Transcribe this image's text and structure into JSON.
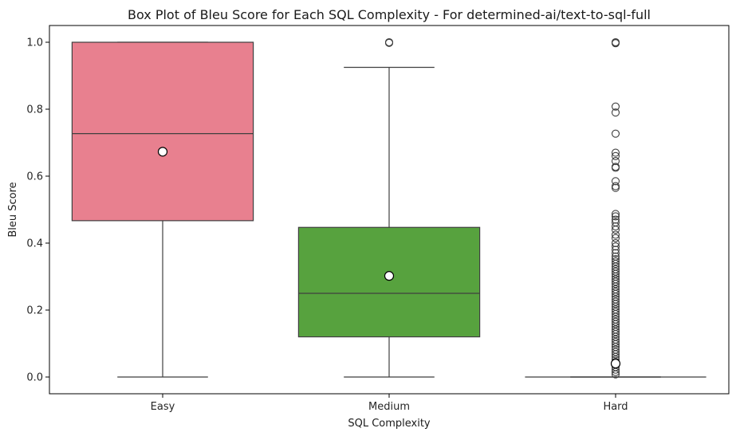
{
  "chart_data": {
    "type": "box",
    "title": "Box Plot of Bleu Score for Each SQL Complexity - For determined-ai/text-to-sql-full",
    "xlabel": "SQL Complexity",
    "ylabel": "Bleu Score",
    "ylim": [
      -0.05,
      1.05
    ],
    "yticks": [
      "0.0",
      "0.2",
      "0.4",
      "0.6",
      "0.8",
      "1.0"
    ],
    "grid": false,
    "legend": "none",
    "categories": [
      "Easy",
      "Medium",
      "Hard"
    ],
    "colors": [
      "#e8808f",
      "#57a23e",
      "#4c7fc4"
    ],
    "boxes": [
      {
        "category": "Easy",
        "whisker_low": 0.0,
        "q1": 0.467,
        "median": 0.727,
        "q3": 1.0,
        "whisker_high": 1.0,
        "mean": 0.673,
        "outliers": []
      },
      {
        "category": "Medium",
        "whisker_low": 0.0,
        "q1": 0.12,
        "median": 0.25,
        "q3": 0.447,
        "whisker_high": 0.925,
        "mean": 0.302,
        "outliers": [
          1.0,
          0.998
        ]
      },
      {
        "category": "Hard",
        "whisker_low": 0.0,
        "q1": 0.0,
        "median": 0.0,
        "q3": 0.0,
        "whisker_high": 0.0,
        "mean": 0.04,
        "outliers": [
          1.0,
          0.999,
          0.997,
          0.808,
          0.79,
          0.727,
          0.67,
          0.66,
          0.645,
          0.628,
          0.625,
          0.585,
          0.57,
          0.565,
          0.487,
          0.48,
          0.47,
          0.462,
          0.45,
          0.44,
          0.425,
          0.415,
          0.4,
          0.39,
          0.38,
          0.37,
          0.36,
          0.352,
          0.345,
          0.338,
          0.33,
          0.322,
          0.315,
          0.308,
          0.3,
          0.292,
          0.285,
          0.278,
          0.27,
          0.262,
          0.255,
          0.248,
          0.24,
          0.232,
          0.225,
          0.218,
          0.21,
          0.202,
          0.195,
          0.188,
          0.18,
          0.172,
          0.165,
          0.158,
          0.15,
          0.142,
          0.135,
          0.128,
          0.12,
          0.112,
          0.105,
          0.098,
          0.09,
          0.082,
          0.075,
          0.068,
          0.06,
          0.052,
          0.045,
          0.038,
          0.03,
          0.022,
          0.015,
          0.008
        ]
      }
    ]
  }
}
